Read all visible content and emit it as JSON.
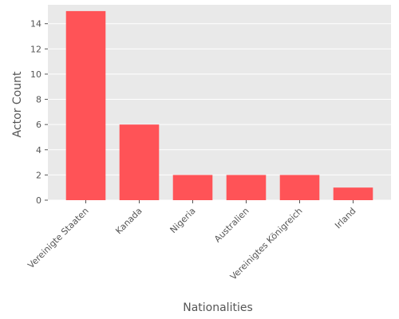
{
  "chart_data": {
    "type": "bar",
    "title": "",
    "xlabel": "Nationalities",
    "ylabel": "Actor Count",
    "categories": [
      "Vereinigte Staaten",
      "Kanada",
      "Nigeria",
      "Australien",
      "Vereinigtes Königreich",
      "Irland"
    ],
    "values": [
      15,
      6,
      2,
      2,
      2,
      1
    ],
    "ylim": [
      0,
      15.5
    ],
    "yticks": [
      0,
      2,
      4,
      6,
      8,
      10,
      12,
      14
    ],
    "grid": true,
    "legend": "none",
    "colors": {
      "bar": "#ff5357",
      "plot_background": "#e9e9e9",
      "grid": "#ffffff",
      "text": "#555555"
    }
  }
}
